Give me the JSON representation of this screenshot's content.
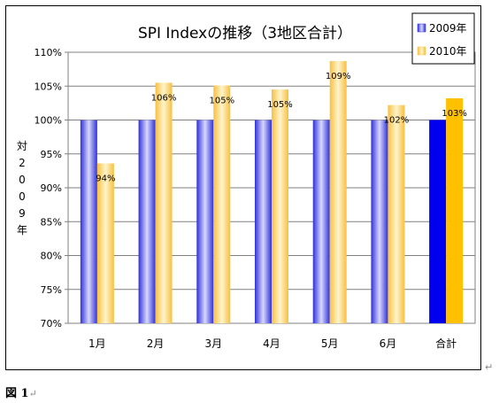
{
  "chart_data": {
    "type": "bar",
    "title": "SPI Indexの推移（3地区合計）",
    "ylabel_chars": [
      "対",
      "2",
      "0",
      "0",
      "9",
      "年"
    ],
    "ylim": [
      70,
      110
    ],
    "yticks": [
      "70%",
      "75%",
      "80%",
      "85%",
      "90%",
      "95%",
      "100%",
      "105%",
      "110%"
    ],
    "ytick_values": [
      70,
      75,
      80,
      85,
      90,
      95,
      100,
      105,
      110
    ],
    "categories": [
      "1月",
      "2月",
      "3月",
      "4月",
      "5月",
      "6月",
      "合計"
    ],
    "series": [
      {
        "name": "2009年",
        "values": [
          100,
          100,
          100,
          100,
          100,
          100,
          100
        ],
        "color": "#6666ee"
      },
      {
        "name": "2010年",
        "values": [
          93.6,
          105.5,
          105.1,
          104.5,
          108.7,
          102.2,
          103.2
        ],
        "color": "#ffd060",
        "labels": [
          "94%",
          "106%",
          "105%",
          "105%",
          "109%",
          "102%",
          "103%"
        ]
      }
    ],
    "highlight_colors": {
      "2009年": "#0000ee",
      "2010年": "#ffc000"
    },
    "grid": true,
    "legend_position": "top-right"
  },
  "caption": {
    "label": "図 1",
    "mark": "↵"
  },
  "para_marks": [
    "↵",
    "↵"
  ]
}
